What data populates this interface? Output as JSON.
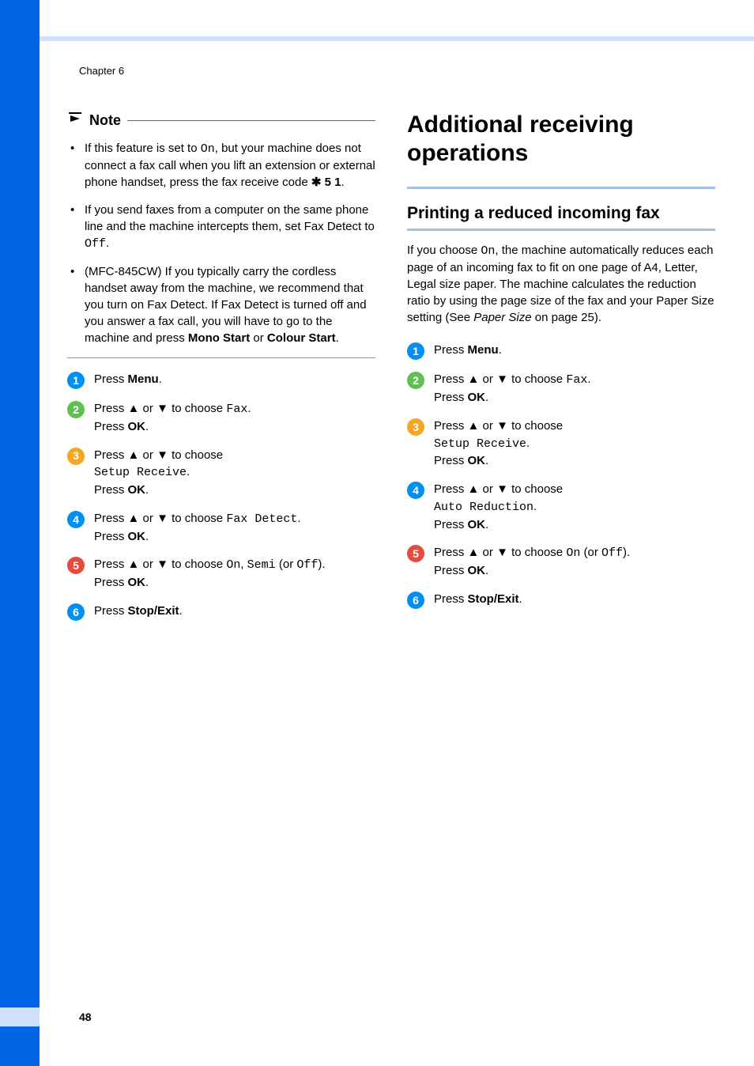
{
  "colors": {
    "sidebar": "#0066e6",
    "topband": "#d0e0f8",
    "subrule": "#a8c0e8",
    "badge_blue": "#0090f0",
    "badge_green": "#5fbf4f",
    "badge_orange": "#f5a623",
    "badge_red": "#e64b3c",
    "text": "#000000",
    "bg": "#ffffff"
  },
  "fonts": {
    "body_size": 15,
    "h1_size": 30,
    "h2_size": 21,
    "chapter_size": 13,
    "badge_size": 14
  },
  "chapter": "Chapter 6",
  "page_number": "48",
  "arrow_up": "▲",
  "arrow_down": "▼",
  "star": "✱",
  "left": {
    "note_label": "Note",
    "bullets": [
      {
        "pre": "If this feature is set to ",
        "mono1": "On",
        "mid": ", but your machine does not connect a fax call when you lift an extension or external phone handset, press the fax receive code ",
        "star": true,
        "code": " 5 1",
        "post": "."
      },
      {
        "pre": "If you send faxes from a computer on the same phone line and the machine intercepts them, set Fax Detect to ",
        "mono1": "Off",
        "post": "."
      },
      {
        "pre": "(MFC-845CW) If you typically carry the cordless handset away from the machine, we recommend that you turn on Fax Detect. If Fax Detect is turned off and you answer a fax call, you will have to go to the machine and press ",
        "bold1": "Mono Start",
        "mid2": " or ",
        "bold2": "Colour Start",
        "post": "."
      }
    ],
    "steps": [
      {
        "n": "1",
        "color": "badge_blue",
        "lines": [
          {
            "t": "Press ",
            "bold": "Menu",
            "post": "."
          }
        ]
      },
      {
        "n": "2",
        "color": "badge_green",
        "lines": [
          {
            "t": "Press ",
            "arrows": true,
            "mid": " to choose ",
            "mono": "Fax",
            "post": "."
          },
          {
            "t": "Press ",
            "bold": "OK",
            "post": "."
          }
        ]
      },
      {
        "n": "3",
        "color": "badge_orange",
        "lines": [
          {
            "t": "Press ",
            "arrows": true,
            "mid": " to choose",
            "post": ""
          },
          {
            "mono": "Setup Receive",
            "post": "."
          },
          {
            "t": "Press ",
            "bold": "OK",
            "post": "."
          }
        ]
      },
      {
        "n": "4",
        "color": "badge_blue",
        "lines": [
          {
            "t": "Press ",
            "arrows": true,
            "mid": " to choose ",
            "mono": "Fax Detect",
            "post": "."
          },
          {
            "t": "Press ",
            "bold": "OK",
            "post": "."
          }
        ]
      },
      {
        "n": "5",
        "color": "badge_red",
        "lines": [
          {
            "t": "Press ",
            "arrows": true,
            "mid": " to choose ",
            "mono": "On",
            "mid2": ", ",
            "mono2": "Semi",
            "mid3": " (or ",
            "mono3": "Off",
            "post": ")."
          },
          {
            "t": "Press ",
            "bold": "OK",
            "post": "."
          }
        ]
      },
      {
        "n": "6",
        "color": "badge_blue",
        "lines": [
          {
            "t": "Press ",
            "bold": "Stop/Exit",
            "post": "."
          }
        ]
      }
    ]
  },
  "right": {
    "h1": "Additional receiving operations",
    "h2": "Printing a reduced incoming fax",
    "intro_pre": "If you choose ",
    "intro_mono": "On",
    "intro_mid": ", the machine automatically reduces each page of an incoming fax to fit on one page of A4, Letter, Legal size paper. The machine calculates the reduction ratio by using the page size of the fax and your Paper Size setting (See ",
    "intro_italic": "Paper Size",
    "intro_post": " on page 25).",
    "steps": [
      {
        "n": "1",
        "color": "badge_blue",
        "lines": [
          {
            "t": "Press ",
            "bold": "Menu",
            "post": "."
          }
        ]
      },
      {
        "n": "2",
        "color": "badge_green",
        "lines": [
          {
            "t": "Press ",
            "arrows": true,
            "mid": " to choose ",
            "mono": "Fax",
            "post": "."
          },
          {
            "t": "Press ",
            "bold": "OK",
            "post": "."
          }
        ]
      },
      {
        "n": "3",
        "color": "badge_orange",
        "lines": [
          {
            "t": "Press ",
            "arrows": true,
            "mid": " to choose",
            "post": ""
          },
          {
            "mono": "Setup Receive",
            "post": "."
          },
          {
            "t": "Press ",
            "bold": "OK",
            "post": "."
          }
        ]
      },
      {
        "n": "4",
        "color": "badge_blue",
        "lines": [
          {
            "t": "Press ",
            "arrows": true,
            "mid": " to choose",
            "post": ""
          },
          {
            "mono": "Auto Reduction",
            "post": "."
          },
          {
            "t": "Press ",
            "bold": "OK",
            "post": "."
          }
        ]
      },
      {
        "n": "5",
        "color": "badge_red",
        "lines": [
          {
            "t": "Press ",
            "arrows": true,
            "mid": " to choose ",
            "mono": "On",
            "mid2": " (or ",
            "mono2": "Off",
            "post": ")."
          },
          {
            "t": "Press ",
            "bold": "OK",
            "post": "."
          }
        ]
      },
      {
        "n": "6",
        "color": "badge_blue",
        "lines": [
          {
            "t": "Press ",
            "bold": "Stop/Exit",
            "post": "."
          }
        ]
      }
    ]
  }
}
